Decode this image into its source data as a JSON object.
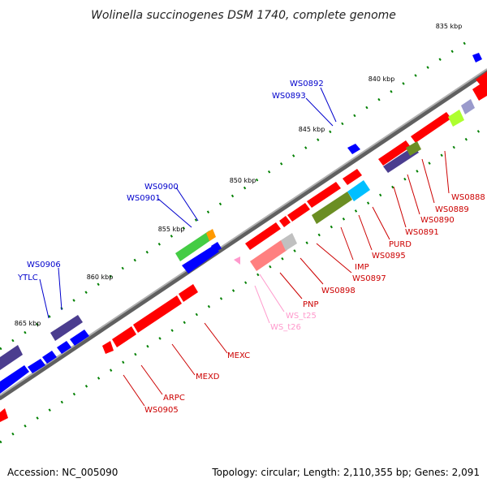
{
  "title": "Wolinella succinogenes DSM 1740, complete genome",
  "footer": {
    "accession": "Accession: NC_005090",
    "summary": "Topology: circular; Length: 2,110,355 bp; Genes: 2,091"
  },
  "ticks": [
    "835 kbp",
    "840 kbp",
    "845 kbp",
    "850 kbp",
    "855 kbp",
    "860 kbp",
    "865 kbp"
  ],
  "labels_outer": [
    "WS0892",
    "WS0893",
    "WS0900",
    "WS0901",
    "WS0906",
    "YTLC"
  ],
  "labels_inner": [
    "WS0888",
    "WS0889",
    "WS0890",
    "WS0891",
    "PURD",
    "WS0895",
    "WS0897",
    "IMP",
    "WS0898",
    "PNP",
    "WS_t25",
    "WS_t26",
    "MEXC",
    "MEXD",
    "ARPC",
    "WS0905"
  ],
  "colors": {
    "backbone": "#808080",
    "forward_cds": "#0000ff",
    "reverse_cds": "#ff0000",
    "trna": "#ff99cc",
    "outer_label": "#0000cc",
    "inner_label": "#cc0000",
    "tick_dots": "#008000"
  }
}
